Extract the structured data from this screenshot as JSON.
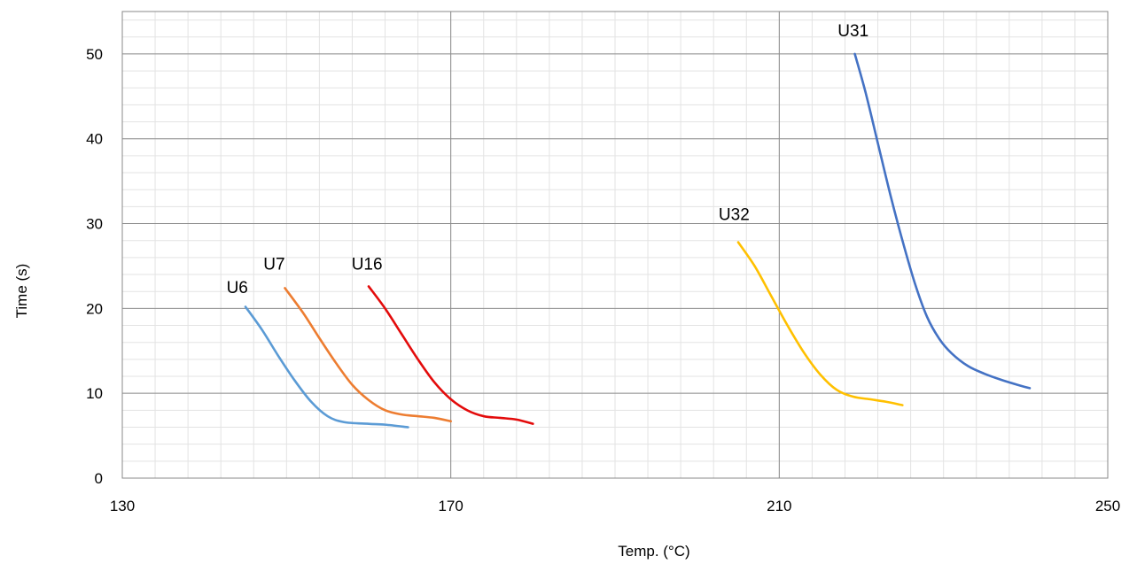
{
  "chart_data": {
    "type": "line",
    "xlabel": "Temp. (°C)",
    "ylabel": "Time (s)",
    "xlim": [
      130,
      250
    ],
    "ylim": [
      0,
      55
    ],
    "x_ticks": [
      "130",
      "170",
      "210",
      "250"
    ],
    "y_ticks": [
      "0",
      "10",
      "20",
      "30",
      "40",
      "50"
    ],
    "grid": true,
    "minor_grid": true,
    "series": [
      {
        "name": "U6",
        "color": "#5b9bd5",
        "points": [
          [
            145,
            20.2
          ],
          [
            147,
            17.5
          ],
          [
            149,
            14.4
          ],
          [
            151,
            11.5
          ],
          [
            153,
            9.0
          ],
          [
            155,
            7.3
          ],
          [
            157,
            6.6
          ],
          [
            160,
            6.4
          ],
          [
            162,
            6.3
          ],
          [
            164.8,
            6.0
          ]
        ]
      },
      {
        "name": "U7",
        "color": "#ed7d31",
        "points": [
          [
            149.8,
            22.4
          ],
          [
            152,
            19.5
          ],
          [
            154,
            16.5
          ],
          [
            156,
            13.6
          ],
          [
            158,
            11.0
          ],
          [
            160,
            9.2
          ],
          [
            162,
            8.0
          ],
          [
            164,
            7.5
          ],
          [
            166,
            7.3
          ],
          [
            168,
            7.1
          ],
          [
            170,
            6.7
          ]
        ]
      },
      {
        "name": "U16",
        "color": "#e30b0b",
        "points": [
          [
            160,
            22.6
          ],
          [
            162,
            20.0
          ],
          [
            164,
            17.0
          ],
          [
            166,
            14.0
          ],
          [
            168,
            11.3
          ],
          [
            170,
            9.3
          ],
          [
            172,
            8.0
          ],
          [
            174,
            7.3
          ],
          [
            176,
            7.1
          ],
          [
            178,
            6.9
          ],
          [
            180,
            6.4
          ]
        ]
      },
      {
        "name": "U32",
        "color": "#ffc000",
        "points": [
          [
            205,
            27.8
          ],
          [
            207,
            25.0
          ],
          [
            209,
            21.5
          ],
          [
            211,
            18.0
          ],
          [
            213,
            14.8
          ],
          [
            215,
            12.2
          ],
          [
            217,
            10.4
          ],
          [
            219,
            9.6
          ],
          [
            221,
            9.3
          ],
          [
            223,
            9.0
          ],
          [
            225,
            8.6
          ]
        ]
      },
      {
        "name": "U31",
        "color": "#4472c4",
        "points": [
          [
            219.2,
            50.0
          ],
          [
            220.5,
            45.5
          ],
          [
            222,
            39.5
          ],
          [
            223.5,
            33.5
          ],
          [
            225,
            28.0
          ],
          [
            226.5,
            23.0
          ],
          [
            228,
            19.0
          ],
          [
            229.5,
            16.4
          ],
          [
            231,
            14.7
          ],
          [
            233,
            13.2
          ],
          [
            235,
            12.3
          ],
          [
            237,
            11.6
          ],
          [
            239,
            11.0
          ],
          [
            240.5,
            10.6
          ]
        ]
      }
    ],
    "labels": [
      {
        "text": "U6",
        "x": 144,
        "y": 21.8
      },
      {
        "text": "U7",
        "x": 148.5,
        "y": 24.6
      },
      {
        "text": "U16",
        "x": 159.8,
        "y": 24.6
      },
      {
        "text": "U32",
        "x": 204.5,
        "y": 30.4
      },
      {
        "text": "U31",
        "x": 219,
        "y": 52.1
      }
    ]
  }
}
